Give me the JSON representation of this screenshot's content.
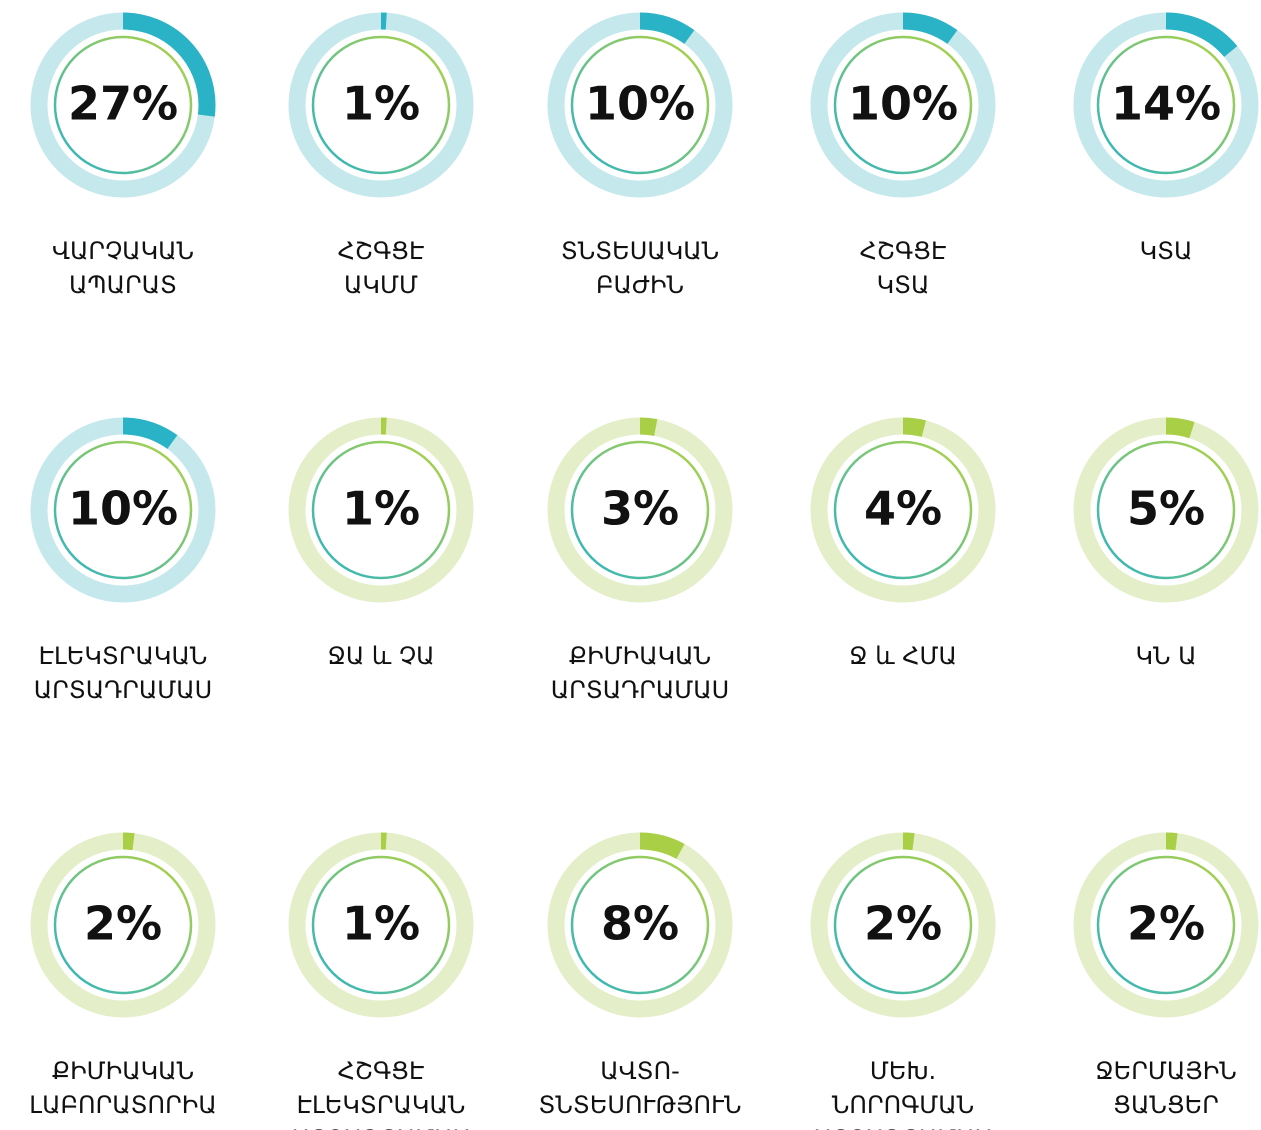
{
  "chart_data": {
    "type": "gauge",
    "items": [
      {
        "label": [
          "ՎԱՐՉԱԿԱՆ",
          "ԱՊԱՐԱՏ"
        ],
        "value": 27,
        "value_label": "27%",
        "color": "#2ab3c6",
        "track": "#c4e8eb"
      },
      {
        "label": [
          "ՀՇԳՑԷ",
          "ԱԿՄՄ"
        ],
        "value": 1,
        "value_label": "1%",
        "color": "#2ab3c6",
        "track": "#c4e8eb"
      },
      {
        "label": [
          "ՏՆՏԵՍԱԿԱՆ",
          "ԲԱԺԻՆ"
        ],
        "value": 10,
        "value_label": "10%",
        "color": "#2ab3c6",
        "track": "#c4e8eb"
      },
      {
        "label": [
          "ՀՇԳՑԷ",
          "ԿՏԱ"
        ],
        "value": 10,
        "value_label": "10%",
        "color": "#2ab3c6",
        "track": "#c4e8eb"
      },
      {
        "label": [
          "ԿՏԱ"
        ],
        "value": 14,
        "value_label": "14%",
        "color": "#2ab3c6",
        "track": "#c4e8eb"
      },
      {
        "label": [
          "ԷԼԵԿՏՐԱԿԱՆ",
          "ԱՐՏԱԴՐԱՄԱՍ"
        ],
        "value": 10,
        "value_label": "10%",
        "color": "#2ab3c6",
        "track": "#c4e8eb"
      },
      {
        "label": [
          "ՋԱ և ՉԱ"
        ],
        "value": 1,
        "value_label": "1%",
        "color": "#a8cf45",
        "track": "#e4eec8"
      },
      {
        "label": [
          "ՔԻՄԻԱԿԱՆ",
          "ԱՐՏԱԴՐԱՄԱՍ"
        ],
        "value": 3,
        "value_label": "3%",
        "color": "#a8cf45",
        "track": "#e4eec8"
      },
      {
        "label": [
          "Ջ և ՀՄԱ"
        ],
        "value": 4,
        "value_label": "4%",
        "color": "#a8cf45",
        "track": "#e4eec8"
      },
      {
        "label": [
          "ԿՆ Ա"
        ],
        "value": 5,
        "value_label": "5%",
        "color": "#a8cf45",
        "track": "#e4eec8"
      },
      {
        "label": [
          "ՔԻՄԻԱԿԱՆ",
          "ԼԱԲՈՐԱՏՈՐԻԱ"
        ],
        "value": 2,
        "value_label": "2%",
        "color": "#a8cf45",
        "track": "#e4eec8"
      },
      {
        "label": [
          "ՀՇԳՑԷ",
          "ԷԼԵԿՏՐԱԿԱՆ",
          "ԱՐՏԱԴՐԱՄԱՍ"
        ],
        "value": 1,
        "value_label": "1%",
        "color": "#a8cf45",
        "track": "#e4eec8"
      },
      {
        "label": [
          "ԱՎՏՈ-",
          "ՏՆՏԵՍՈՒԹՅՈՒՆ"
        ],
        "value": 8,
        "value_label": "8%",
        "color": "#a8cf45",
        "track": "#e4eec8"
      },
      {
        "label": [
          "ՄԵԽ.",
          "ՆՈՐՈԳՄԱՆ",
          "ԱՐՏԱԴՐԱՄԱՍ"
        ],
        "value": 2,
        "value_label": "2%",
        "color": "#a8cf45",
        "track": "#e4eec8"
      },
      {
        "label": [
          "ՋԵՐՄԱՅԻՆ",
          "ՑԱՆՑԵՐ"
        ],
        "value": 2,
        "value_label": "2%",
        "color": "#a8cf45",
        "track": "#e4eec8"
      }
    ]
  }
}
